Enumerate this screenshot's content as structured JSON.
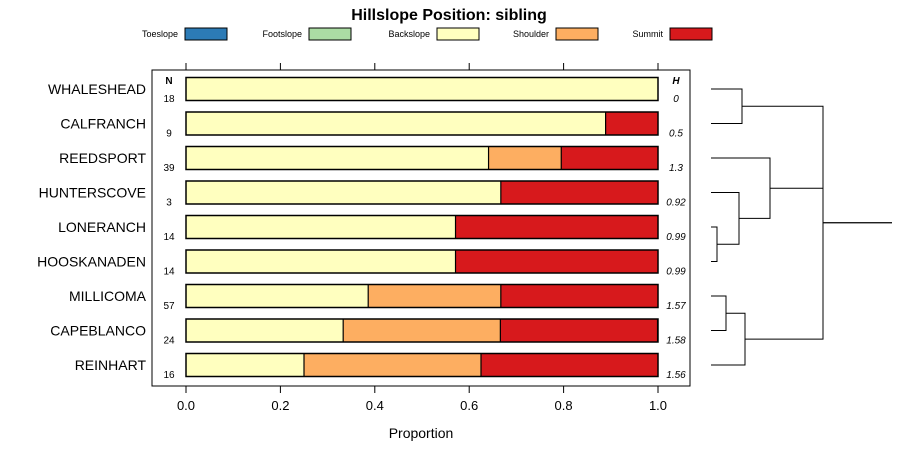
{
  "chart_data": {
    "type": "bar",
    "stacked": true,
    "orientation": "horizontal",
    "title": "Hillslope Position: sibling",
    "xlabel": "Proportion",
    "xlim": [
      0,
      1
    ],
    "x_ticks": [
      "0.0",
      "0.2",
      "0.4",
      "0.6",
      "0.8",
      "1.0"
    ],
    "n_header": "N",
    "h_header": "H",
    "legend_position": "top",
    "legend": [
      {
        "name": "Toeslope",
        "color": "#2c7bb6"
      },
      {
        "name": "Footslope",
        "color": "#abdda4"
      },
      {
        "name": "Backslope",
        "color": "#ffffbf"
      },
      {
        "name": "Shoulder",
        "color": "#fdae61"
      },
      {
        "name": "Summit",
        "color": "#d7191c"
      }
    ],
    "categories": [
      "WHALESHEAD",
      "CALFRANCH",
      "REEDSPORT",
      "HUNTERSCOVE",
      "LONERANCH",
      "HOOSKANADEN",
      "MILLICOMA",
      "CAPEBLANCO",
      "REINHART"
    ],
    "n": [
      "18",
      "9",
      "39",
      "3",
      "14",
      "14",
      "57",
      "24",
      "16"
    ],
    "h": [
      "0",
      "0.5",
      "1.3",
      "0.92",
      "0.99",
      "0.99",
      "1.57",
      "1.58",
      "1.56"
    ],
    "series": [
      {
        "name": "Toeslope",
        "values": [
          0,
          0,
          0,
          0,
          0,
          0,
          0,
          0,
          0
        ]
      },
      {
        "name": "Footslope",
        "values": [
          0,
          0,
          0,
          0,
          0,
          0,
          0,
          0,
          0
        ]
      },
      {
        "name": "Backslope",
        "values": [
          1.0,
          0.889,
          0.641,
          0.667,
          0.571,
          0.571,
          0.386,
          0.333,
          0.25
        ]
      },
      {
        "name": "Shoulder",
        "values": [
          0,
          0,
          0.154,
          0,
          0,
          0,
          0.281,
          0.333,
          0.375
        ]
      },
      {
        "name": "Summit",
        "values": [
          0,
          0.111,
          0.205,
          0.333,
          0.429,
          0.429,
          0.333,
          0.333,
          0.375
        ]
      }
    ],
    "dendrogram": "shown"
  }
}
